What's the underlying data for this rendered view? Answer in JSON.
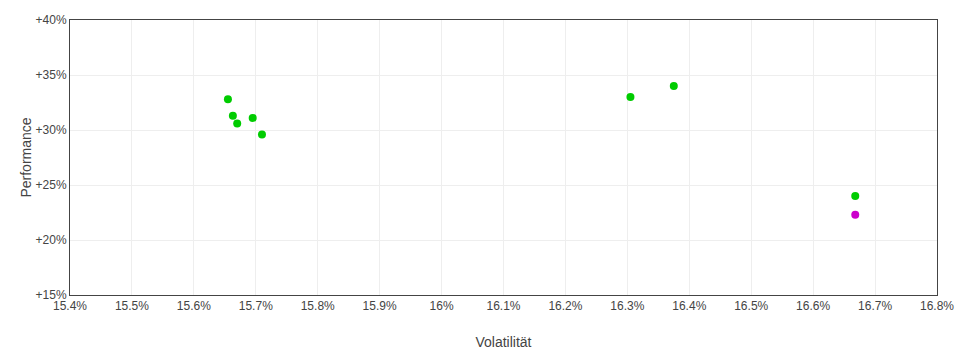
{
  "chart_data": {
    "type": "scatter",
    "xlabel": "Volatilität",
    "ylabel": "Performance",
    "xlim": [
      15.4,
      16.8
    ],
    "ylim": [
      15.0,
      40.0
    ],
    "xticks": [
      {
        "value": 15.4,
        "label": "15.4%"
      },
      {
        "value": 15.5,
        "label": "15.5%"
      },
      {
        "value": 15.6,
        "label": "15.6%"
      },
      {
        "value": 15.7,
        "label": "15.7%"
      },
      {
        "value": 15.8,
        "label": "15.8%"
      },
      {
        "value": 15.9,
        "label": "15.9%"
      },
      {
        "value": 16.0,
        "label": "16%"
      },
      {
        "value": 16.1,
        "label": "16.1%"
      },
      {
        "value": 16.2,
        "label": "16.2%"
      },
      {
        "value": 16.3,
        "label": "16.3%"
      },
      {
        "value": 16.4,
        "label": "16.4%"
      },
      {
        "value": 16.5,
        "label": "16.5%"
      },
      {
        "value": 16.6,
        "label": "16.6%"
      },
      {
        "value": 16.7,
        "label": "16.7%"
      },
      {
        "value": 16.8,
        "label": "16.8%"
      }
    ],
    "yticks": [
      {
        "value": 15,
        "label": "+15%"
      },
      {
        "value": 20,
        "label": "+20%"
      },
      {
        "value": 25,
        "label": "+25%"
      },
      {
        "value": 30,
        "label": "+30%"
      },
      {
        "value": 35,
        "label": "+35%"
      },
      {
        "value": 40,
        "label": "+40%"
      }
    ],
    "grid": true,
    "series": [
      {
        "color": "#00cc00",
        "x": [
          15.655,
          15.663,
          15.67,
          15.695,
          15.71,
          16.305,
          16.375,
          16.668
        ],
        "values": [
          32.8,
          31.3,
          30.6,
          31.1,
          29.6,
          33.0,
          34.0,
          24.0
        ]
      },
      {
        "color": "#cc00cc",
        "x": [
          16.668
        ],
        "values": [
          22.3
        ]
      }
    ]
  }
}
